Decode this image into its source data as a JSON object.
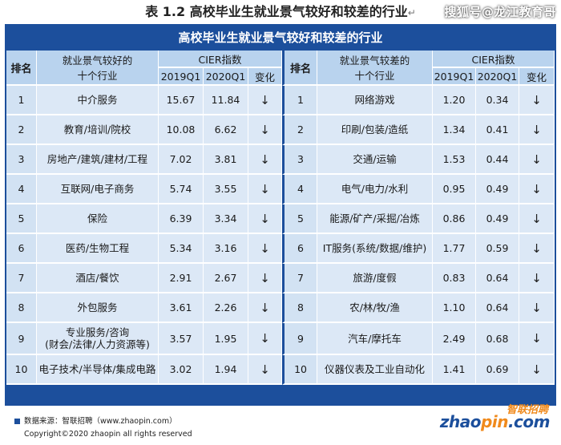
{
  "title": "表 1.2 高校毕业生就业景气较好和较差的行业",
  "title_mark": "↵",
  "watermark": "搜狐号@龙江教育哥",
  "banner": "高校毕业生就业景气较好和较差的行业",
  "header": {
    "rank": "排名",
    "good_industry_line1": "就业景气较好的",
    "good_industry_line2": "十个行业",
    "bad_industry_line1": "就业景气较差的",
    "bad_industry_line2": "十个行业",
    "cier": "CIER指数",
    "q2019": "2019Q1",
    "q2020": "2020Q1",
    "change": "变化"
  },
  "rows": [
    {
      "rank": "1",
      "good": "中介服务",
      "g2019": "15.67",
      "g2020": "11.84",
      "gchg": "↓",
      "brank": "1",
      "bad": "网络游戏",
      "b2019": "1.20",
      "b2020": "0.34",
      "bchg": "↓"
    },
    {
      "rank": "2",
      "good": "教育/培训/院校",
      "g2019": "10.08",
      "g2020": "6.62",
      "gchg": "↓",
      "brank": "2",
      "bad": "印刷/包装/造纸",
      "b2019": "1.34",
      "b2020": "0.41",
      "bchg": "↓"
    },
    {
      "rank": "3",
      "good": "房地产/建筑/建材/工程",
      "g2019": "7.02",
      "g2020": "3.81",
      "gchg": "↓",
      "brank": "3",
      "bad": "交通/运输",
      "b2019": "1.53",
      "b2020": "0.44",
      "bchg": "↓"
    },
    {
      "rank": "4",
      "good": "互联网/电子商务",
      "g2019": "5.74",
      "g2020": "3.55",
      "gchg": "↓",
      "brank": "4",
      "bad": "电气/电力/水利",
      "b2019": "0.95",
      "b2020": "0.49",
      "bchg": "↓"
    },
    {
      "rank": "5",
      "good": "保险",
      "g2019": "6.39",
      "g2020": "3.34",
      "gchg": "↓",
      "brank": "5",
      "bad": "能源/矿产/采掘/冶炼",
      "b2019": "0.86",
      "b2020": "0.49",
      "bchg": "↓"
    },
    {
      "rank": "6",
      "good": "医药/生物工程",
      "g2019": "5.34",
      "g2020": "3.16",
      "gchg": "↓",
      "brank": "6",
      "bad": "IT服务(系统/数据/维护)",
      "b2019": "1.77",
      "b2020": "0.59",
      "bchg": "↓"
    },
    {
      "rank": "7",
      "good": "酒店/餐饮",
      "g2019": "2.91",
      "g2020": "2.67",
      "gchg": "↓",
      "brank": "7",
      "bad": "旅游/度假",
      "b2019": "0.83",
      "b2020": "0.64",
      "bchg": "↓"
    },
    {
      "rank": "8",
      "good": "外包服务",
      "g2019": "3.61",
      "g2020": "2.26",
      "gchg": "↓",
      "brank": "8",
      "bad": "农/林/牧/渔",
      "b2019": "1.10",
      "b2020": "0.64",
      "bchg": "↓"
    },
    {
      "rank": "9",
      "good": "专业服务/咨询",
      "good2": "(财会/法律/人力资源等)",
      "g2019": "3.57",
      "g2020": "1.95",
      "gchg": "↓",
      "brank": "9",
      "bad": "汽车/摩托车",
      "b2019": "2.49",
      "b2020": "0.68",
      "bchg": "↓"
    },
    {
      "rank": "10",
      "good": "电子技术/半导体/集成电路",
      "g2019": "3.02",
      "g2020": "1.94",
      "gchg": "↓",
      "brank": "10",
      "bad": "仪器仪表及工业自动化",
      "b2019": "1.41",
      "b2020": "0.69",
      "bchg": "↓"
    }
  ],
  "footer": {
    "source": "数据来源：智联招聘（www.zhaopin.com）",
    "copyright": "Copyright©2020 zhaopin all rights reserved",
    "logo_cn": "智联招聘",
    "logo_en_a": "zhao",
    "logo_en_dot": "pin",
    "logo_en_b": ".com"
  },
  "colors": {
    "banner": "#1c4f9c",
    "header_bg": "#b9d3ee",
    "row_bg": "#dce8f6",
    "logo_orange": "#f08a1c"
  }
}
